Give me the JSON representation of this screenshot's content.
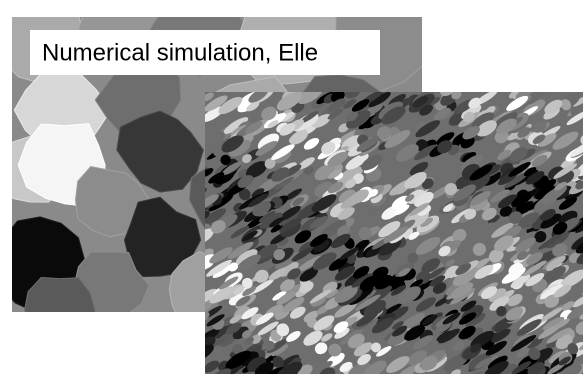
{
  "label": "Numerical simulation, Elle"
}
